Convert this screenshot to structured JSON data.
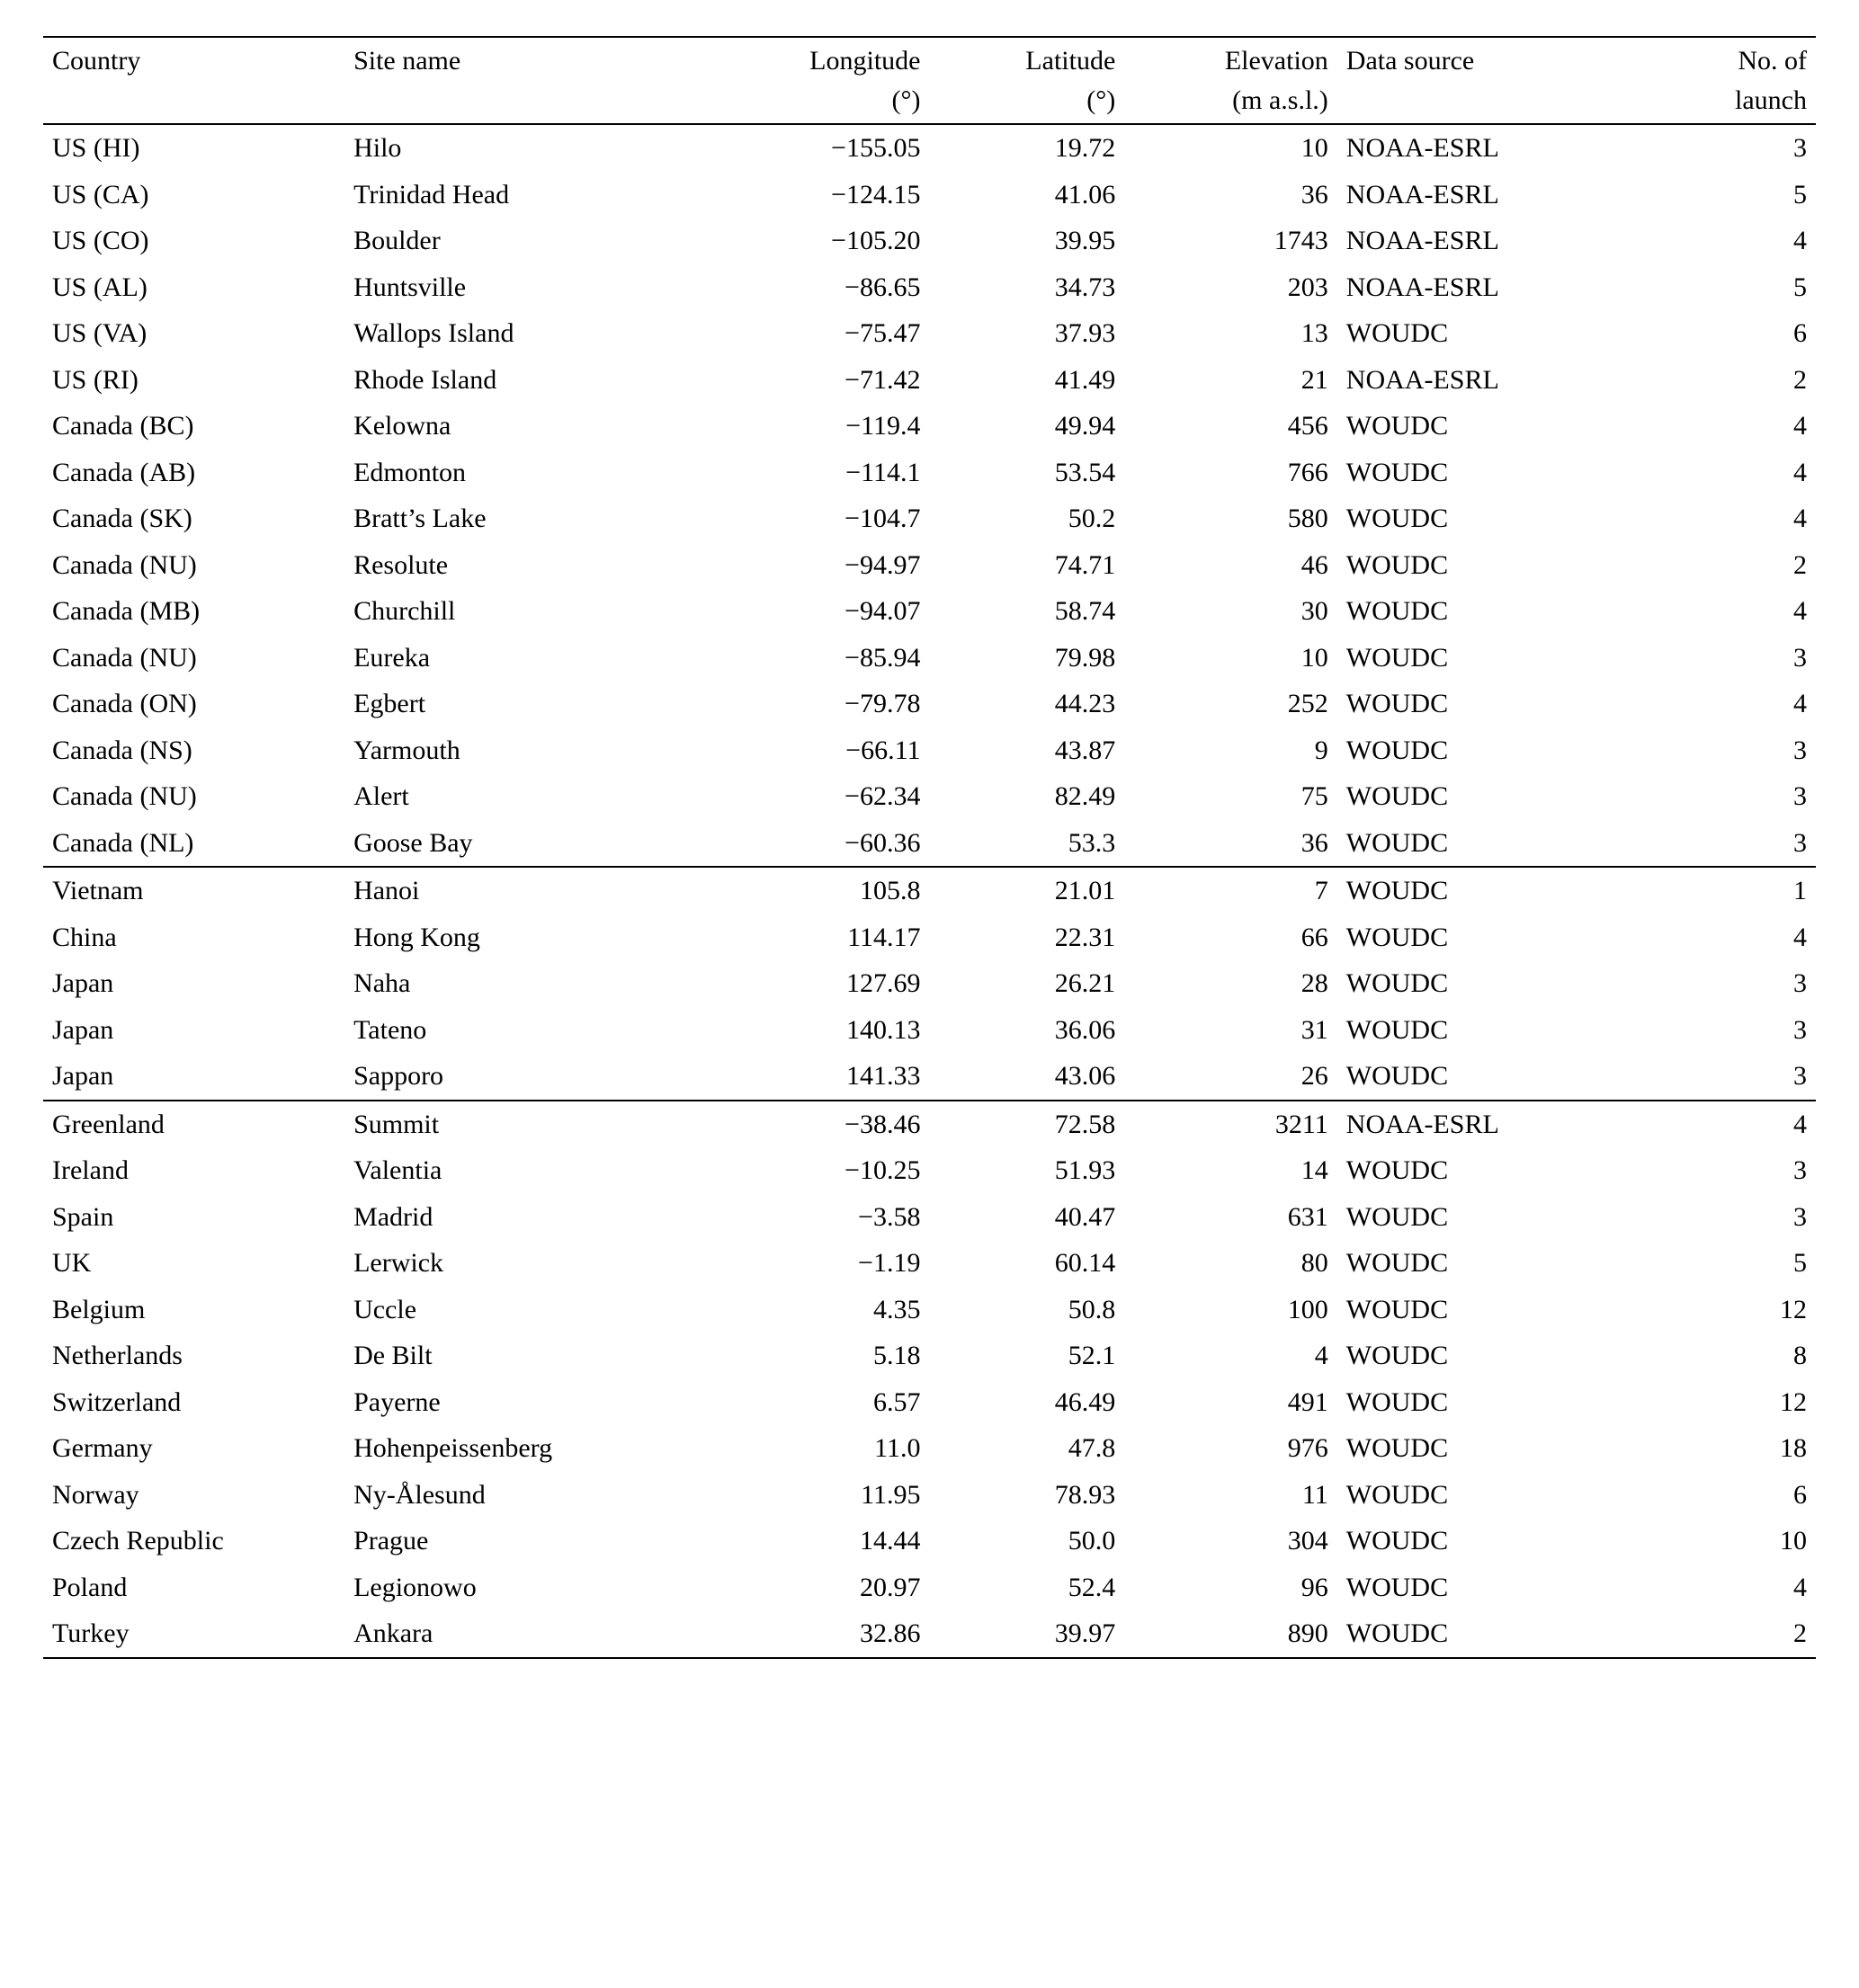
{
  "columns": {
    "country": {
      "h1": "Country",
      "h2": ""
    },
    "site": {
      "h1": "Site name",
      "h2": ""
    },
    "lon": {
      "h1": "Longitude",
      "h2": "(°)"
    },
    "lat": {
      "h1": "Latitude",
      "h2": "(°)"
    },
    "elev": {
      "h1": "Elevation",
      "h2": "(m a.s.l.)"
    },
    "source": {
      "h1": "Data source",
      "h2": ""
    },
    "launch": {
      "h1": "No. of",
      "h2": "launch"
    }
  },
  "sections": [
    {
      "rows": [
        {
          "country": "US (HI)",
          "site": "Hilo",
          "lon": "−155.05",
          "lat": "19.72",
          "elev": "10",
          "source": "NOAA-ESRL",
          "launch": "3"
        },
        {
          "country": "US (CA)",
          "site": "Trinidad Head",
          "lon": "−124.15",
          "lat": "41.06",
          "elev": "36",
          "source": "NOAA-ESRL",
          "launch": "5"
        },
        {
          "country": "US (CO)",
          "site": "Boulder",
          "lon": "−105.20",
          "lat": "39.95",
          "elev": "1743",
          "source": "NOAA-ESRL",
          "launch": "4"
        },
        {
          "country": "US (AL)",
          "site": "Huntsville",
          "lon": "−86.65",
          "lat": "34.73",
          "elev": "203",
          "source": "NOAA-ESRL",
          "launch": "5"
        },
        {
          "country": "US (VA)",
          "site": "Wallops Island",
          "lon": "−75.47",
          "lat": "37.93",
          "elev": "13",
          "source": "WOUDC",
          "launch": "6"
        },
        {
          "country": "US (RI)",
          "site": "Rhode Island",
          "lon": "−71.42",
          "lat": "41.49",
          "elev": "21",
          "source": "NOAA-ESRL",
          "launch": "2"
        },
        {
          "country": "Canada (BC)",
          "site": "Kelowna",
          "lon": "−119.4",
          "lat": "49.94",
          "elev": "456",
          "source": "WOUDC",
          "launch": "4"
        },
        {
          "country": "Canada (AB)",
          "site": "Edmonton",
          "lon": "−114.1",
          "lat": "53.54",
          "elev": "766",
          "source": "WOUDC",
          "launch": "4"
        },
        {
          "country": "Canada (SK)",
          "site": "Bratt’s Lake",
          "lon": "−104.7",
          "lat": "50.2",
          "elev": "580",
          "source": "WOUDC",
          "launch": "4"
        },
        {
          "country": "Canada (NU)",
          "site": "Resolute",
          "lon": "−94.97",
          "lat": "74.71",
          "elev": "46",
          "source": "WOUDC",
          "launch": "2"
        },
        {
          "country": "Canada (MB)",
          "site": "Churchill",
          "lon": "−94.07",
          "lat": "58.74",
          "elev": "30",
          "source": "WOUDC",
          "launch": "4"
        },
        {
          "country": "Canada (NU)",
          "site": "Eureka",
          "lon": "−85.94",
          "lat": "79.98",
          "elev": "10",
          "source": "WOUDC",
          "launch": "3"
        },
        {
          "country": "Canada (ON)",
          "site": "Egbert",
          "lon": "−79.78",
          "lat": "44.23",
          "elev": "252",
          "source": "WOUDC",
          "launch": "4"
        },
        {
          "country": "Canada (NS)",
          "site": "Yarmouth",
          "lon": "−66.11",
          "lat": "43.87",
          "elev": "9",
          "source": "WOUDC",
          "launch": "3"
        },
        {
          "country": "Canada (NU)",
          "site": "Alert",
          "lon": "−62.34",
          "lat": "82.49",
          "elev": "75",
          "source": "WOUDC",
          "launch": "3"
        },
        {
          "country": "Canada (NL)",
          "site": "Goose Bay",
          "lon": "−60.36",
          "lat": "53.3",
          "elev": "36",
          "source": "WOUDC",
          "launch": "3"
        }
      ]
    },
    {
      "rows": [
        {
          "country": "Vietnam",
          "site": "Hanoi",
          "lon": "105.8",
          "lat": "21.01",
          "elev": "7",
          "source": "WOUDC",
          "launch": "1"
        },
        {
          "country": "China",
          "site": "Hong Kong",
          "lon": "114.17",
          "lat": "22.31",
          "elev": "66",
          "source": "WOUDC",
          "launch": "4"
        },
        {
          "country": "Japan",
          "site": "Naha",
          "lon": "127.69",
          "lat": "26.21",
          "elev": "28",
          "source": "WOUDC",
          "launch": "3"
        },
        {
          "country": "Japan",
          "site": "Tateno",
          "lon": "140.13",
          "lat": "36.06",
          "elev": "31",
          "source": "WOUDC",
          "launch": "3"
        },
        {
          "country": "Japan",
          "site": "Sapporo",
          "lon": "141.33",
          "lat": "43.06",
          "elev": "26",
          "source": "WOUDC",
          "launch": "3"
        }
      ]
    },
    {
      "rows": [
        {
          "country": "Greenland",
          "site": "Summit",
          "lon": "−38.46",
          "lat": "72.58",
          "elev": "3211",
          "source": "NOAA-ESRL",
          "launch": "4"
        },
        {
          "country": "Ireland",
          "site": "Valentia",
          "lon": "−10.25",
          "lat": "51.93",
          "elev": "14",
          "source": "WOUDC",
          "launch": "3"
        },
        {
          "country": "Spain",
          "site": "Madrid",
          "lon": "−3.58",
          "lat": "40.47",
          "elev": "631",
          "source": "WOUDC",
          "launch": "3"
        },
        {
          "country": "UK",
          "site": "Lerwick",
          "lon": "−1.19",
          "lat": "60.14",
          "elev": "80",
          "source": "WOUDC",
          "launch": "5"
        },
        {
          "country": "Belgium",
          "site": "Uccle",
          "lon": "4.35",
          "lat": "50.8",
          "elev": "100",
          "source": "WOUDC",
          "launch": "12"
        },
        {
          "country": "Netherlands",
          "site": "De Bilt",
          "lon": "5.18",
          "lat": "52.1",
          "elev": "4",
          "source": "WOUDC",
          "launch": "8"
        },
        {
          "country": "Switzerland",
          "site": "Payerne",
          "lon": "6.57",
          "lat": "46.49",
          "elev": "491",
          "source": "WOUDC",
          "launch": "12"
        },
        {
          "country": "Germany",
          "site": "Hohenpeissenberg",
          "lon": "11.0",
          "lat": "47.8",
          "elev": "976",
          "source": "WOUDC",
          "launch": "18"
        },
        {
          "country": "Norway",
          "site": "Ny-Ålesund",
          "lon": "11.95",
          "lat": "78.93",
          "elev": "11",
          "source": "WOUDC",
          "launch": "6"
        },
        {
          "country": "Czech Republic",
          "site": "Prague",
          "lon": "14.44",
          "lat": "50.0",
          "elev": "304",
          "source": "WOUDC",
          "launch": "10"
        },
        {
          "country": "Poland",
          "site": "Legionowo",
          "lon": "20.97",
          "lat": "52.4",
          "elev": "96",
          "source": "WOUDC",
          "launch": "4"
        },
        {
          "country": "Turkey",
          "site": "Ankara",
          "lon": "32.86",
          "lat": "39.97",
          "elev": "890",
          "source": "WOUDC",
          "launch": "2"
        }
      ]
    }
  ],
  "layout": {
    "col_widths_pct": [
      17,
      20,
      13,
      11,
      12,
      16,
      11
    ],
    "align": [
      "l",
      "l",
      "r",
      "r",
      "r",
      "l",
      "r"
    ]
  }
}
